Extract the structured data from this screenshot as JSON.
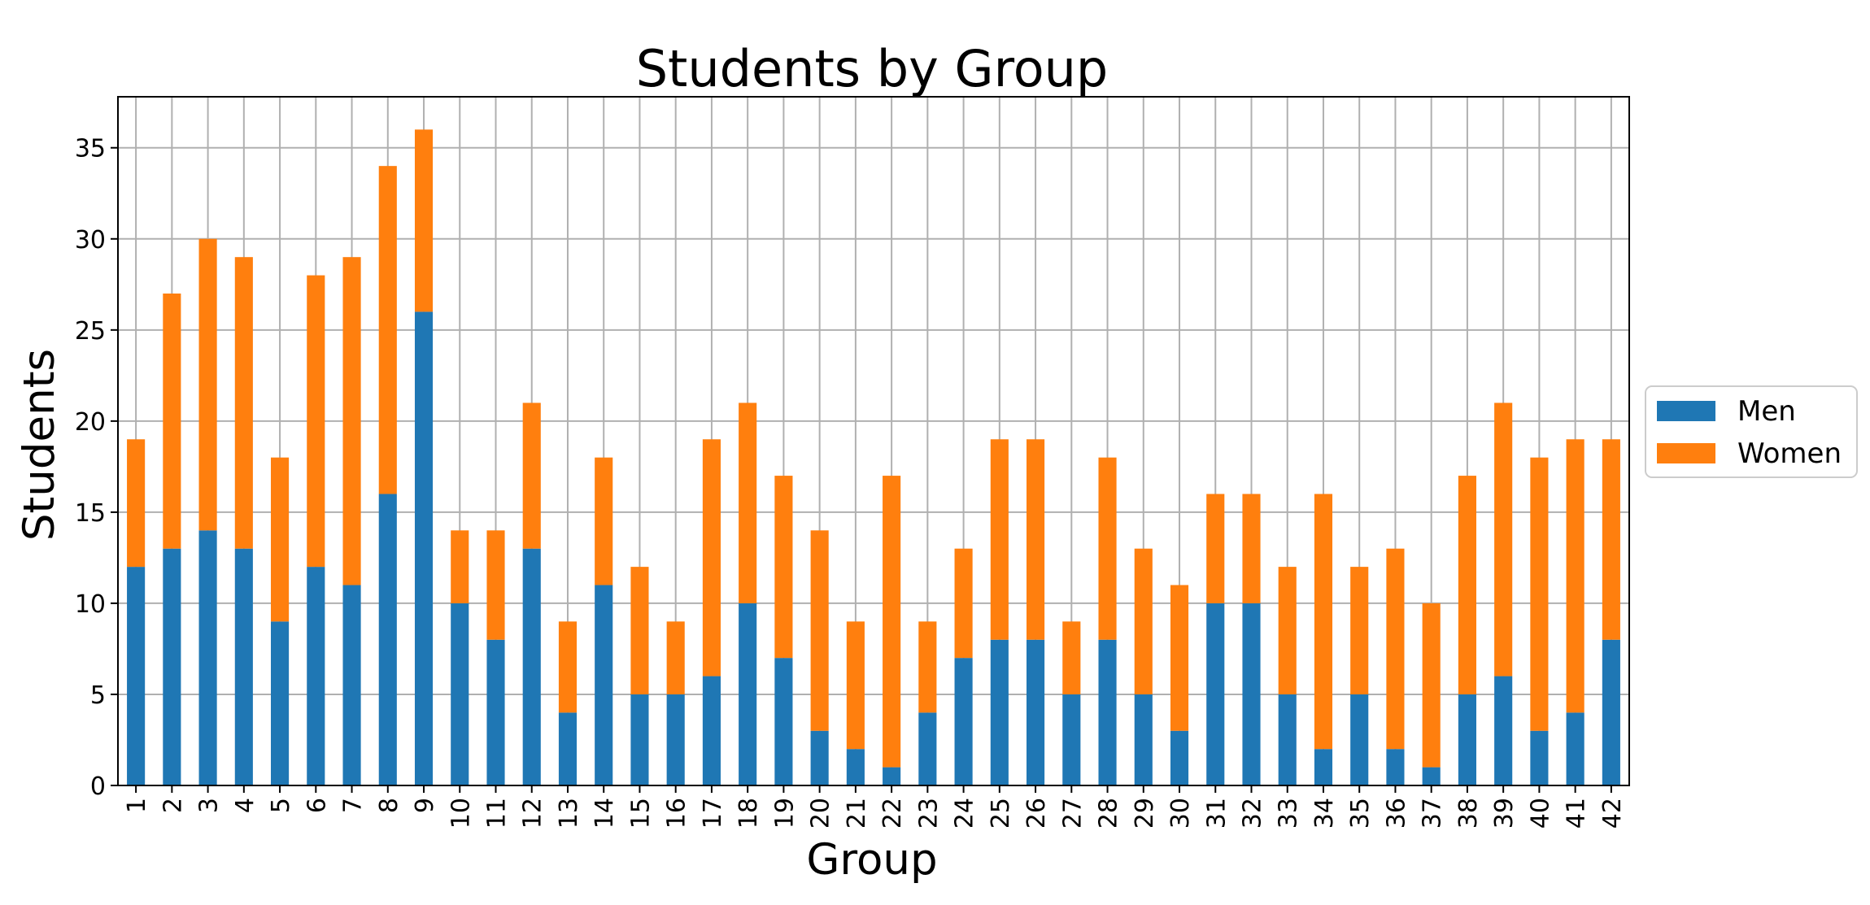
{
  "chart_data": {
    "type": "bar",
    "stacked": true,
    "title": "Students by Group",
    "xlabel": "Group",
    "ylabel": "Students",
    "categories": [
      "1",
      "2",
      "3",
      "4",
      "5",
      "6",
      "7",
      "8",
      "9",
      "10",
      "11",
      "12",
      "13",
      "14",
      "15",
      "16",
      "17",
      "18",
      "19",
      "20",
      "21",
      "22",
      "23",
      "24",
      "25",
      "26",
      "27",
      "28",
      "29",
      "30",
      "31",
      "32",
      "33",
      "34",
      "35",
      "36",
      "37",
      "38",
      "39",
      "40",
      "41",
      "42"
    ],
    "series": [
      {
        "name": "Men",
        "color": "#1f77b4",
        "values": [
          12,
          13,
          14,
          13,
          9,
          12,
          11,
          16,
          26,
          10,
          8,
          13,
          4,
          11,
          5,
          5,
          6,
          10,
          7,
          3,
          2,
          1,
          4,
          7,
          8,
          8,
          5,
          8,
          5,
          3,
          10,
          10,
          5,
          2,
          5,
          2,
          1,
          5,
          6,
          3,
          4,
          8
        ]
      },
      {
        "name": "Women",
        "color": "#ff7f0e",
        "values": [
          7,
          14,
          16,
          16,
          9,
          16,
          18,
          18,
          10,
          4,
          6,
          8,
          5,
          7,
          7,
          4,
          13,
          11,
          10,
          11,
          7,
          16,
          5,
          6,
          11,
          11,
          4,
          10,
          8,
          8,
          6,
          6,
          7,
          14,
          7,
          11,
          9,
          12,
          15,
          15,
          15,
          11
        ]
      }
    ],
    "yticks": [
      0,
      5,
      10,
      15,
      20,
      25,
      30,
      35
    ],
    "ylim": [
      0,
      37.8
    ],
    "grid": true,
    "legend": "center-right, outside plot"
  }
}
